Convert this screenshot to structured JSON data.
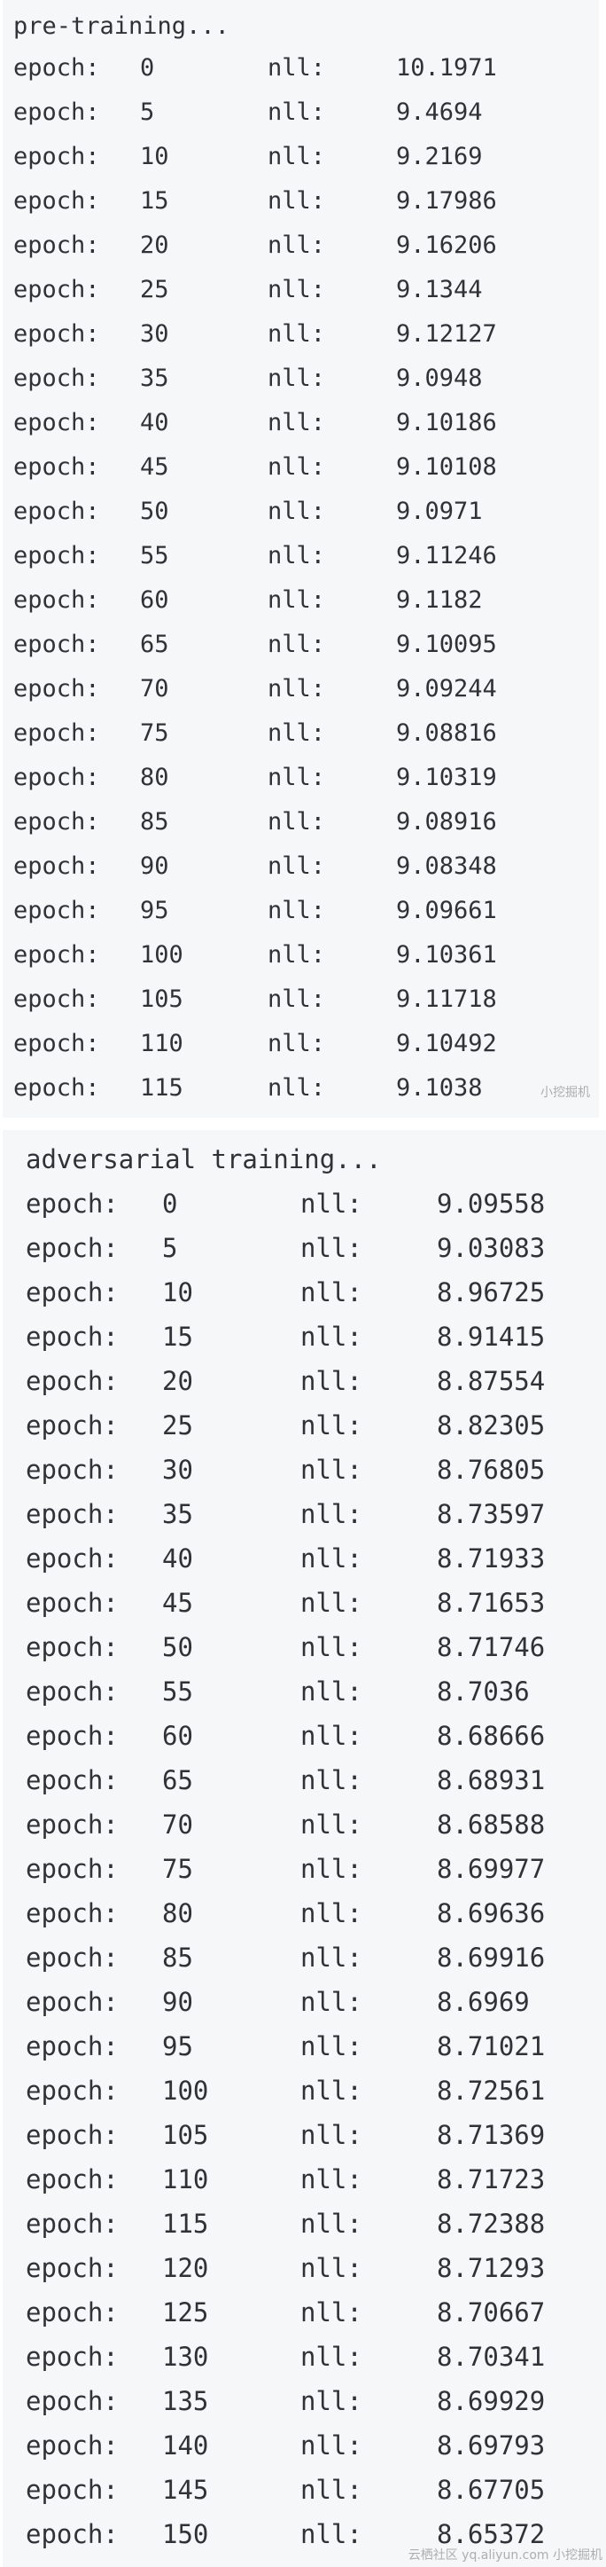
{
  "pretraining": {
    "title": "pre-training...",
    "epoch_label": "epoch:",
    "nll_label": "nll:",
    "rows": [
      {
        "epoch": "0",
        "nll": "10.1971"
      },
      {
        "epoch": "5",
        "nll": "9.4694"
      },
      {
        "epoch": "10",
        "nll": "9.2169"
      },
      {
        "epoch": "15",
        "nll": "9.17986"
      },
      {
        "epoch": "20",
        "nll": "9.16206"
      },
      {
        "epoch": "25",
        "nll": "9.1344"
      },
      {
        "epoch": "30",
        "nll": "9.12127"
      },
      {
        "epoch": "35",
        "nll": "9.0948"
      },
      {
        "epoch": "40",
        "nll": "9.10186"
      },
      {
        "epoch": "45",
        "nll": "9.10108"
      },
      {
        "epoch": "50",
        "nll": "9.0971"
      },
      {
        "epoch": "55",
        "nll": "9.11246"
      },
      {
        "epoch": "60",
        "nll": "9.1182"
      },
      {
        "epoch": "65",
        "nll": "9.10095"
      },
      {
        "epoch": "70",
        "nll": "9.09244"
      },
      {
        "epoch": "75",
        "nll": "9.08816"
      },
      {
        "epoch": "80",
        "nll": "9.10319"
      },
      {
        "epoch": "85",
        "nll": "9.08916"
      },
      {
        "epoch": "90",
        "nll": "9.08348"
      },
      {
        "epoch": "95",
        "nll": "9.09661"
      },
      {
        "epoch": "100",
        "nll": "9.10361"
      },
      {
        "epoch": "105",
        "nll": "9.11718"
      },
      {
        "epoch": "110",
        "nll": "9.10492"
      },
      {
        "epoch": "115",
        "nll": "9.1038"
      }
    ],
    "watermark": "小挖掘机"
  },
  "adversarial": {
    "title": "adversarial training...",
    "epoch_label": "epoch:",
    "nll_label": "nll:",
    "rows": [
      {
        "epoch": "0",
        "nll": "9.09558"
      },
      {
        "epoch": "5",
        "nll": "9.03083"
      },
      {
        "epoch": "10",
        "nll": "8.96725"
      },
      {
        "epoch": "15",
        "nll": "8.91415"
      },
      {
        "epoch": "20",
        "nll": "8.87554"
      },
      {
        "epoch": "25",
        "nll": "8.82305"
      },
      {
        "epoch": "30",
        "nll": "8.76805"
      },
      {
        "epoch": "35",
        "nll": "8.73597"
      },
      {
        "epoch": "40",
        "nll": "8.71933"
      },
      {
        "epoch": "45",
        "nll": "8.71653"
      },
      {
        "epoch": "50",
        "nll": "8.71746"
      },
      {
        "epoch": "55",
        "nll": "8.7036"
      },
      {
        "epoch": "60",
        "nll": "8.68666"
      },
      {
        "epoch": "65",
        "nll": "8.68931"
      },
      {
        "epoch": "70",
        "nll": "8.68588"
      },
      {
        "epoch": "75",
        "nll": "8.69977"
      },
      {
        "epoch": "80",
        "nll": "8.69636"
      },
      {
        "epoch": "85",
        "nll": "8.69916"
      },
      {
        "epoch": "90",
        "nll": "8.6969"
      },
      {
        "epoch": "95",
        "nll": "8.71021"
      },
      {
        "epoch": "100",
        "nll": "8.72561"
      },
      {
        "epoch": "105",
        "nll": "8.71369"
      },
      {
        "epoch": "110",
        "nll": "8.71723"
      },
      {
        "epoch": "115",
        "nll": "8.72388"
      },
      {
        "epoch": "120",
        "nll": "8.71293"
      },
      {
        "epoch": "125",
        "nll": "8.70667"
      },
      {
        "epoch": "130",
        "nll": "8.70341"
      },
      {
        "epoch": "135",
        "nll": "8.69929"
      },
      {
        "epoch": "140",
        "nll": "8.69793"
      },
      {
        "epoch": "145",
        "nll": "8.67705"
      },
      {
        "epoch": "150",
        "nll": "8.65372"
      }
    ],
    "watermark": "云栖社区 yq.aliyun.com 小挖掘机"
  }
}
